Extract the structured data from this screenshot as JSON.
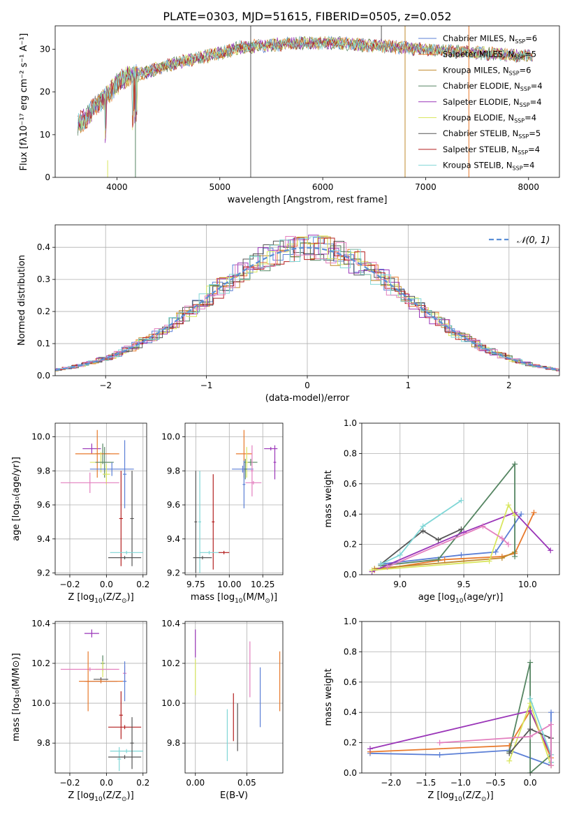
{
  "figure_title": "PLATE=0303, MJD=51615, FIBERID=0505, z=0.052",
  "colors": {
    "Chabrier MILES": "#5b7fd6",
    "Salpeter MILES": "#e8792b",
    "Kroupa MILES": "#c08a2c",
    "Chabrier ELODIE": "#558562",
    "Salpeter ELODIE": "#9a35b8",
    "Kroupa ELODIE": "#d9e65f",
    "Chabrier STELIB": "#555555",
    "Salpeter STELIB": "#b31f1f",
    "Kroupa STELIB": "#7fd6d6",
    "pink": "#e37fbf",
    "gaussian": "#5b8fd6"
  },
  "chart_data": [
    {
      "id": "spectrum",
      "type": "line",
      "title": "PLATE=0303, MJD=51615, FIBERID=0505, z=0.052",
      "xlabel": "wavelength [Angstrom, rest frame]",
      "ylabel": "Flux [fλ10⁻¹⁷ erg cm⁻² s⁻¹ A⁻¹]",
      "xlim": [
        3400,
        8300
      ],
      "ylim": [
        0,
        35.5
      ],
      "xticks": [
        4000,
        5000,
        6000,
        7000,
        8000
      ],
      "yticks": [
        0,
        10,
        20,
        30
      ],
      "grid": false,
      "legend_position": "top-right",
      "continuum": {
        "x": [
          3600,
          3700,
          3800,
          3900,
          4000,
          4100,
          4200,
          4400,
          4600,
          4800,
          5000,
          5200,
          5500,
          5800,
          6100,
          6400,
          6700,
          7000,
          7300,
          7600,
          7900,
          8050
        ],
        "y": [
          12,
          14,
          17,
          19,
          22,
          23.5,
          24,
          25.5,
          27,
          28,
          29,
          30.5,
          31,
          31.5,
          31.5,
          31,
          30.5,
          30,
          29.5,
          29,
          28.5,
          28.5
        ]
      },
      "series": [
        {
          "name": "Chabrier MILES, N_SSP=6",
          "label_main": "Chabrier MILES, N",
          "label_sub": "SSP",
          "label_tail": "=6",
          "color": "Chabrier MILES"
        },
        {
          "name": "Salpeter MILES, N_SSP=5",
          "label_main": "Salpeter MILES, N",
          "label_sub": "SSP",
          "label_tail": "=5",
          "color": "Salpeter MILES"
        },
        {
          "name": "Kroupa MILES, N_SSP=6",
          "label_main": "Kroupa MILES, N",
          "label_sub": "SSP",
          "label_tail": "=6",
          "color": "Kroupa MILES"
        },
        {
          "name": "Chabrier ELODIE, N_SSP=4",
          "label_main": "Chabrier ELODIE, N",
          "label_sub": "SSP",
          "label_tail": "=4",
          "color": "Chabrier ELODIE"
        },
        {
          "name": "Salpeter ELODIE, N_SSP=4",
          "label_main": "Salpeter ELODIE, N",
          "label_sub": "SSP",
          "label_tail": "=4",
          "color": "Salpeter ELODIE"
        },
        {
          "name": "Kroupa ELODIE, N_SSP=4",
          "label_main": "Kroupa ELODIE, N",
          "label_sub": "SSP",
          "label_tail": "=4",
          "color": "Kroupa ELODIE"
        },
        {
          "name": "Chabrier STELIB, N_SSP=5",
          "label_main": "Chabrier STELIB, N",
          "label_sub": "SSP",
          "label_tail": "=5",
          "color": "Chabrier STELIB"
        },
        {
          "name": "Salpeter STELIB, N_SSP=4",
          "label_main": "Salpeter STELIB, N",
          "label_sub": "SSP",
          "label_tail": "=4",
          "color": "Salpeter STELIB"
        },
        {
          "name": "Kroupa STELIB, N_SSP=4",
          "label_main": "Kroupa STELIB, N",
          "label_sub": "SSP",
          "label_tail": "=4",
          "color": "Kroupa STELIB"
        }
      ]
    },
    {
      "id": "residuals",
      "type": "histogram",
      "xlabel": "(data-model)/error",
      "ylabel": "Normed distribution",
      "xlim": [
        -2.5,
        2.5
      ],
      "ylim": [
        0,
        0.47
      ],
      "xticks": [
        -2,
        -1,
        0,
        1,
        2
      ],
      "yticks": [
        0.0,
        0.1,
        0.2,
        0.3,
        0.4
      ],
      "grid": true,
      "bin_width": 0.1,
      "legend": [
        {
          "label": "𝒩(0, 1)",
          "style": "dashed",
          "color": "gaussian"
        }
      ],
      "legend_position": "top-right",
      "gaussian": {
        "mean": 0,
        "sigma": 1
      }
    },
    {
      "id": "age-vs-Z",
      "type": "errorbar",
      "xlabel_main": "Z [log",
      "xlabel_sub": "10",
      "xlabel_tail": "(Z/Z",
      "xlabel_sun": "⊙",
      "xlabel_end": ")]",
      "ylabel": "age  [log₁₀(age/yr)]",
      "xlim": [
        -0.28,
        0.22
      ],
      "ylim": [
        9.19,
        10.08
      ],
      "xticks": [
        -0.2,
        0.0,
        0.2
      ],
      "yticks": [
        9.2,
        9.4,
        9.6,
        9.8,
        10.0
      ],
      "grid": true,
      "points": [
        {
          "x": -0.08,
          "xerr": 0.05,
          "y": 9.93,
          "yerr": 0.03,
          "color": "Salpeter ELODIE"
        },
        {
          "x": -0.02,
          "xerr": 0.04,
          "y": 9.9,
          "yerr": 0.06,
          "color": "Chabrier ELODIE"
        },
        {
          "x": -0.05,
          "xerr": 0.12,
          "y": 9.9,
          "yerr": 0.14,
          "color": "Salpeter MILES"
        },
        {
          "x": -0.03,
          "xerr": 0.06,
          "y": 9.85,
          "yerr": 0.06,
          "color": "Kroupa ELODIE"
        },
        {
          "x": -0.01,
          "xerr": 0.05,
          "y": 9.85,
          "yerr": 0.09,
          "color": "Chabrier ELODIE"
        },
        {
          "x": 0.03,
          "xerr": 0.12,
          "y": 9.81,
          "yerr": 0.04,
          "color": "Chabrier MILES"
        },
        {
          "x": 0.1,
          "xerr": 0.01,
          "y": 9.78,
          "yerr": 0.2,
          "color": "Chabrier MILES"
        },
        {
          "x": 0.0,
          "xerr": 0.02,
          "y": 9.78,
          "yerr": 0.06,
          "color": "Kroupa ELODIE"
        },
        {
          "x": -0.09,
          "xerr": 0.16,
          "y": 9.73,
          "yerr": 0.06,
          "color": "pink"
        },
        {
          "x": 0.14,
          "xerr": 0.01,
          "y": 9.52,
          "yerr": 0.28,
          "color": "Chabrier STELIB"
        },
        {
          "x": 0.08,
          "xerr": 0.01,
          "y": 9.52,
          "yerr": 0.28,
          "color": "Salpeter STELIB"
        },
        {
          "x": 0.11,
          "xerr": 0.09,
          "y": 9.32,
          "yerr": 0.01,
          "color": "Kroupa STELIB"
        },
        {
          "x": 0.1,
          "xerr": 0.09,
          "y": 9.29,
          "yerr": 0.01,
          "color": "Chabrier STELIB"
        }
      ]
    },
    {
      "id": "age-vs-mass",
      "type": "errorbar",
      "xlabel_main": "mass [log",
      "xlabel_sub": "10",
      "xlabel_tail": "(M/M",
      "xlabel_sun": "⊙",
      "xlabel_end": ")]",
      "xlim": [
        9.67,
        10.4
      ],
      "ylim": [
        9.19,
        10.08
      ],
      "xticks": [
        9.75,
        10.0,
        10.25
      ],
      "yticks": [
        9.2,
        9.4,
        9.6,
        9.8,
        10.0
      ],
      "grid": true,
      "points": [
        {
          "x": 10.31,
          "xerr": 0.05,
          "y": 9.93,
          "yerr": 0.01,
          "color": "Salpeter ELODIE"
        },
        {
          "x": 10.34,
          "xerr": 0.01,
          "y": 9.85,
          "yerr": 0.1,
          "color": "Salpeter ELODIE"
        },
        {
          "x": 10.11,
          "xerr": 0.06,
          "y": 9.9,
          "yerr": 0.14,
          "color": "Salpeter MILES"
        },
        {
          "x": 10.16,
          "xerr": 0.05,
          "y": 9.85,
          "yerr": 0.02,
          "color": "Chabrier ELODIE"
        },
        {
          "x": 10.13,
          "xerr": 0.01,
          "y": 9.85,
          "yerr": 0.09,
          "color": "Kroupa ELODIE"
        },
        {
          "x": 10.1,
          "xerr": 0.08,
          "y": 9.81,
          "yerr": 0.02,
          "color": "Chabrier MILES"
        },
        {
          "x": 10.12,
          "xerr": 0.01,
          "y": 9.81,
          "yerr": 0.06,
          "color": "Chabrier ELODIE"
        },
        {
          "x": 10.17,
          "xerr": 0.01,
          "y": 9.8,
          "yerr": 0.15,
          "color": "pink"
        },
        {
          "x": 10.18,
          "xerr": 0.06,
          "y": 9.73,
          "yerr": 0.01,
          "color": "pink"
        },
        {
          "x": 10.11,
          "xerr": 0.01,
          "y": 9.72,
          "yerr": 0.14,
          "color": "Chabrier MILES"
        },
        {
          "x": 9.75,
          "xerr": 0.01,
          "y": 9.5,
          "yerr": 0.3,
          "color": "Chabrier STELIB"
        },
        {
          "x": 9.78,
          "xerr": 0.01,
          "y": 9.5,
          "yerr": 0.3,
          "color": "Kroupa STELIB"
        },
        {
          "x": 9.88,
          "xerr": 0.01,
          "y": 9.5,
          "yerr": 0.28,
          "color": "Salpeter STELIB"
        },
        {
          "x": 9.85,
          "xerr": 0.07,
          "y": 9.32,
          "yerr": 0.01,
          "color": "Kroupa STELIB"
        },
        {
          "x": 9.96,
          "xerr": 0.04,
          "y": 9.32,
          "yerr": 0.01,
          "color": "Salpeter STELIB"
        },
        {
          "x": 9.8,
          "xerr": 0.07,
          "y": 9.29,
          "yerr": 0.01,
          "color": "Chabrier STELIB"
        }
      ]
    },
    {
      "id": "weight-vs-age",
      "type": "line",
      "xlabel_main": "age  [log",
      "xlabel_sub": "10",
      "xlabel_tail": "(age/yr)]",
      "ylabel": "mass weight",
      "xlim": [
        8.7,
        10.25
      ],
      "ylim": [
        0,
        1.0
      ],
      "xticks": [
        9.0,
        9.5,
        10.0
      ],
      "yticks": [
        0.0,
        0.2,
        0.4,
        0.6,
        0.8,
        1.0
      ],
      "grid": true,
      "series": [
        {
          "color": "Chabrier MILES",
          "x": [
            8.85,
            9.48,
            9.75,
            9.95
          ],
          "y": [
            0.07,
            0.13,
            0.15,
            0.4
          ]
        },
        {
          "color": "Salpeter MILES",
          "x": [
            8.8,
            9.35,
            9.8,
            9.9,
            10.05
          ],
          "y": [
            0.03,
            0.1,
            0.12,
            0.14,
            0.41
          ]
        },
        {
          "color": "Kroupa MILES",
          "x": [
            8.8,
            9.5,
            9.8,
            9.9
          ],
          "y": [
            0.04,
            0.09,
            0.11,
            0.15
          ]
        },
        {
          "color": "Chabrier ELODIE",
          "x": [
            8.85,
            9.3,
            9.9,
            9.9
          ],
          "y": [
            0.06,
            0.1,
            0.73,
            0.12
          ]
        },
        {
          "color": "Salpeter ELODIE",
          "x": [
            8.78,
            9.5,
            9.9,
            10.18
          ],
          "y": [
            0.02,
            0.28,
            0.41,
            0.16
          ]
        },
        {
          "color": "Kroupa ELODIE",
          "x": [
            8.78,
            9.7,
            9.85,
            9.9
          ],
          "y": [
            0.03,
            0.09,
            0.46,
            0.39
          ]
        },
        {
          "color": "Chabrier STELIB",
          "x": [
            8.85,
            9.18,
            9.3,
            9.48
          ],
          "y": [
            0.07,
            0.29,
            0.23,
            0.3
          ]
        },
        {
          "color": "Kroupa STELIB",
          "x": [
            8.85,
            9.0,
            9.18,
            9.48
          ],
          "y": [
            0.07,
            0.13,
            0.32,
            0.49
          ]
        },
        {
          "color": "pink",
          "x": [
            8.9,
            9.65,
            9.8,
            9.85
          ],
          "y": [
            0.05,
            0.32,
            0.24,
            0.2
          ]
        }
      ]
    },
    {
      "id": "mass-vs-Z",
      "type": "errorbar",
      "xlabel_main": "Z [log",
      "xlabel_sub": "10",
      "xlabel_tail": "(Z/Z",
      "xlabel_sun": "⊙",
      "xlabel_end": ")]",
      "ylabel": "mass [log₁₀(M/M⊙)]",
      "xlim": [
        -0.28,
        0.22
      ],
      "ylim": [
        9.65,
        10.41
      ],
      "xticks": [
        -0.2,
        0.0,
        0.2
      ],
      "yticks": [
        9.8,
        10.0,
        10.2,
        10.4
      ],
      "grid": true,
      "points": [
        {
          "x": -0.08,
          "xerr": 0.04,
          "y": 10.35,
          "yerr": 0.02,
          "color": "Salpeter ELODIE"
        },
        {
          "x": -0.02,
          "xerr": 0.01,
          "y": 10.2,
          "yerr": 0.04,
          "color": "Chabrier ELODIE"
        },
        {
          "x": -0.02,
          "xerr": 0.04,
          "y": 10.17,
          "yerr": 0.04,
          "color": "Kroupa ELODIE"
        },
        {
          "x": -0.09,
          "xerr": 0.16,
          "y": 10.17,
          "yerr": 0.01,
          "color": "pink"
        },
        {
          "x": 0.1,
          "xerr": 0.01,
          "y": 10.15,
          "yerr": 0.04,
          "color": "pink"
        },
        {
          "x": -0.03,
          "xerr": 0.09,
          "y": 10.11,
          "yerr": 0.01,
          "color": "Chabrier MILES"
        },
        {
          "x": 0.1,
          "xerr": 0.01,
          "y": 10.11,
          "yerr": 0.1,
          "color": "Chabrier MILES"
        },
        {
          "x": -0.03,
          "xerr": 0.04,
          "y": 10.12,
          "yerr": 0.01,
          "color": "Chabrier STELIB"
        },
        {
          "x": -0.1,
          "xerr": 0.01,
          "y": 10.11,
          "yerr": 0.15,
          "color": "Salpeter MILES"
        },
        {
          "x": -0.03,
          "xerr": 0.12,
          "y": 10.11,
          "yerr": 0.01,
          "color": "Salpeter MILES"
        },
        {
          "x": 0.08,
          "xerr": 0.01,
          "y": 9.94,
          "yerr": 0.12,
          "color": "Salpeter STELIB"
        },
        {
          "x": 0.1,
          "xerr": 0.09,
          "y": 9.88,
          "yerr": 0.01,
          "color": "Salpeter STELIB"
        },
        {
          "x": 0.07,
          "xerr": 0.01,
          "y": 9.72,
          "yerr": 0.06,
          "color": "Kroupa STELIB"
        },
        {
          "x": 0.11,
          "xerr": 0.09,
          "y": 9.76,
          "yerr": 0.01,
          "color": "Kroupa STELIB"
        },
        {
          "x": 0.14,
          "xerr": 0.01,
          "y": 9.8,
          "yerr": 0.13,
          "color": "Chabrier STELIB"
        },
        {
          "x": 0.1,
          "xerr": 0.09,
          "y": 9.73,
          "yerr": 0.01,
          "color": "Chabrier STELIB"
        }
      ]
    },
    {
      "id": "mass-vs-ebv",
      "type": "errorbar",
      "xlabel": "E(B-V)",
      "xlim": [
        -0.01,
        0.085
      ],
      "ylim": [
        9.65,
        10.41
      ],
      "xticks": [
        0.0,
        0.05
      ],
      "yticks": [
        9.8,
        10.0,
        10.2,
        10.4
      ],
      "grid": true,
      "points": [
        {
          "x": 0.0,
          "xerr": 0,
          "y": 10.3,
          "yerr": 0.07,
          "color": "Salpeter ELODIE"
        },
        {
          "x": 0.0,
          "xerr": 0,
          "y": 10.13,
          "yerr": 0.09,
          "color": "Kroupa ELODIE"
        },
        {
          "x": 0.053,
          "xerr": 0,
          "y": 10.17,
          "yerr": 0.14,
          "color": "pink"
        },
        {
          "x": 0.063,
          "xerr": 0,
          "y": 10.03,
          "yerr": 0.15,
          "color": "Chabrier MILES"
        },
        {
          "x": 0.082,
          "xerr": 0,
          "y": 10.11,
          "yerr": 0.15,
          "color": "Salpeter MILES"
        },
        {
          "x": 0.041,
          "xerr": 0,
          "y": 9.88,
          "yerr": 0.12,
          "color": "Chabrier STELIB"
        },
        {
          "x": 0.037,
          "xerr": 0,
          "y": 9.93,
          "yerr": 0.12,
          "color": "Salpeter STELIB"
        },
        {
          "x": 0.031,
          "xerr": 0,
          "y": 9.84,
          "yerr": 0.13,
          "color": "Kroupa STELIB"
        }
      ]
    },
    {
      "id": "weight-vs-Z",
      "type": "line",
      "xlabel_main": "Z [log",
      "xlabel_sub": "10",
      "xlabel_tail": "(Z/Z",
      "xlabel_sun": "⊙",
      "xlabel_end": ")]",
      "ylabel": "mass weight",
      "xlim": [
        -2.42,
        0.42
      ],
      "ylim": [
        0,
        1.0
      ],
      "xticks": [
        -2.0,
        -1.5,
        -1.0,
        -0.5,
        0.0
      ],
      "yticks": [
        0.0,
        0.2,
        0.4,
        0.6,
        0.8,
        1.0
      ],
      "grid": true,
      "series": [
        {
          "color": "Chabrier MILES",
          "x": [
            -2.3,
            -1.3,
            -0.3,
            0.3,
            0.3
          ],
          "y": [
            0.13,
            0.12,
            0.15,
            0.05,
            0.4
          ]
        },
        {
          "color": "Salpeter MILES",
          "x": [
            -2.3,
            -0.3,
            0.0,
            0.3,
            0.3
          ],
          "y": [
            0.14,
            0.18,
            0.41,
            0.1,
            0.05
          ]
        },
        {
          "color": "Chabrier ELODIE",
          "x": [
            -0.3,
            0.0,
            0.0,
            0.3
          ],
          "y": [
            0.14,
            0.73,
            0.0,
            0.12
          ]
        },
        {
          "color": "Salpeter ELODIE",
          "x": [
            -2.3,
            0.0,
            0.3
          ],
          "y": [
            0.16,
            0.41,
            0.12
          ]
        },
        {
          "color": "Kroupa ELODIE",
          "x": [
            -0.3,
            0.0,
            0.3
          ],
          "y": [
            0.08,
            0.46,
            0.05
          ]
        },
        {
          "color": "Chabrier STELIB",
          "x": [
            -0.3,
            0.0,
            0.3,
            0.3
          ],
          "y": [
            0.13,
            0.29,
            0.23,
            0.07
          ]
        },
        {
          "color": "Kroupa STELIB",
          "x": [
            0.0,
            0.3,
            0.3
          ],
          "y": [
            0.49,
            0.12,
            0.07
          ]
        },
        {
          "color": "pink",
          "x": [
            -1.3,
            0.0,
            0.3,
            0.3
          ],
          "y": [
            0.2,
            0.24,
            0.32,
            0.05
          ]
        }
      ]
    }
  ]
}
